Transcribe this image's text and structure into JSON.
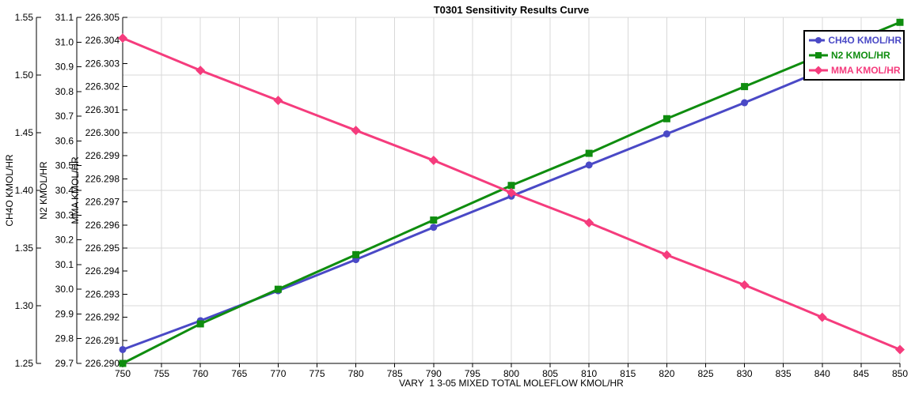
{
  "title": "T0301 Sensitivity Results Curve",
  "chart_data": {
    "type": "line",
    "title": "T0301 Sensitivity Results Curve",
    "xlabel": "VARY  1 3-05 MIXED TOTAL MOLEFLOW KMOL/HR",
    "grid": true,
    "legend_position": "top-right",
    "x": [
      750,
      760,
      770,
      780,
      790,
      800,
      810,
      820,
      830,
      840,
      850
    ],
    "x_ticks": [
      "750",
      "755",
      "760",
      "765",
      "770",
      "775",
      "780",
      "785",
      "790",
      "795",
      "800",
      "805",
      "810",
      "815",
      "820",
      "825",
      "830",
      "835",
      "840",
      "845",
      "850"
    ],
    "axes": [
      {
        "name": "CH4O KMOL/HR",
        "min": 1.25,
        "max": 1.55,
        "ticks": [
          "1.25",
          "1.30",
          "1.35",
          "1.40",
          "1.45",
          "1.50",
          "1.55"
        ]
      },
      {
        "name": "N2 KMOL/HR",
        "min": 29.7,
        "max": 31.1,
        "ticks": [
          "29.7",
          "29.8",
          "29.9",
          "30.0",
          "30.1",
          "30.2",
          "30.3",
          "30.4",
          "30.5",
          "30.6",
          "30.7",
          "30.8",
          "30.9",
          "31.0",
          "31.1"
        ]
      },
      {
        "name": "MMA KMOL/HR",
        "min": 226.29,
        "max": 226.305,
        "ticks": [
          "226.290",
          "226.291",
          "226.292",
          "226.293",
          "226.294",
          "226.295",
          "226.296",
          "226.297",
          "226.298",
          "226.299",
          "226.300",
          "226.301",
          "226.302",
          "226.303",
          "226.304",
          "226.305"
        ]
      }
    ],
    "series": [
      {
        "name": "CH4O KMOL/HR",
        "axis": 0,
        "color": "#4a49c6",
        "marker": "circle",
        "values": [
          1.262,
          1.287,
          1.313,
          1.34,
          1.368,
          1.395,
          1.422,
          1.449,
          1.476,
          1.504,
          1.533
        ]
      },
      {
        "name": "N2 KMOL/HR",
        "axis": 1,
        "color": "#0f8d0f",
        "marker": "square",
        "values": [
          29.7,
          29.86,
          30.0,
          30.14,
          30.28,
          30.42,
          30.55,
          30.69,
          30.82,
          30.95,
          31.08
        ]
      },
      {
        "name": "MMA KMOL/HR",
        "axis": 2,
        "color": "#f53c7d",
        "marker": "diamond",
        "values": [
          226.3041,
          226.3027,
          226.3014,
          226.3001,
          226.2988,
          226.2974,
          226.2961,
          226.2947,
          226.2934,
          226.292,
          226.2906
        ]
      }
    ],
    "colors": {
      "grid": "#d8d8d8",
      "axis": "#000000",
      "background": "#ffffff"
    }
  }
}
